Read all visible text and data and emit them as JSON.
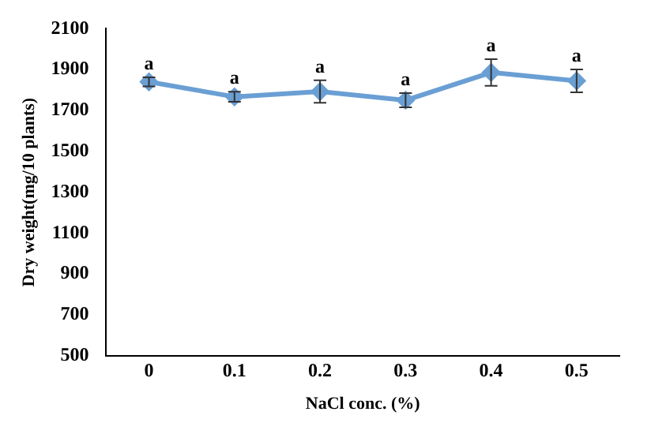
{
  "chart_data": {
    "type": "line",
    "xlabel": "NaCl conc. (%)",
    "ylabel": "Dry weight(mg/10 plants)",
    "categories": [
      "0",
      "0.1",
      "0.2",
      "0.3",
      "0.4",
      "0.5"
    ],
    "series": [
      {
        "color": "#6a9fd4",
        "values": [
          1840,
          1767,
          1793,
          1750,
          1886,
          1845
        ],
        "errors": [
          22,
          25,
          55,
          35,
          65,
          56
        ]
      }
    ],
    "ylim": [
      500,
      2100
    ],
    "yticks": [
      500,
      700,
      900,
      1100,
      1300,
      1500,
      1700,
      1900,
      2100
    ],
    "grid": false,
    "legend": false,
    "marker": "diamond",
    "line_style": "solid",
    "annotations": [
      {
        "text": "a",
        "x": "0",
        "y": 1862
      },
      {
        "text": "a",
        "x": "0.1",
        "y": 1792
      },
      {
        "text": "a",
        "x": "0.2",
        "y": 1848
      },
      {
        "text": "a",
        "x": "0.3",
        "y": 1785
      },
      {
        "text": "a",
        "x": "0.4",
        "y": 1951
      },
      {
        "text": "a",
        "x": "0.5",
        "y": 1901
      }
    ]
  }
}
